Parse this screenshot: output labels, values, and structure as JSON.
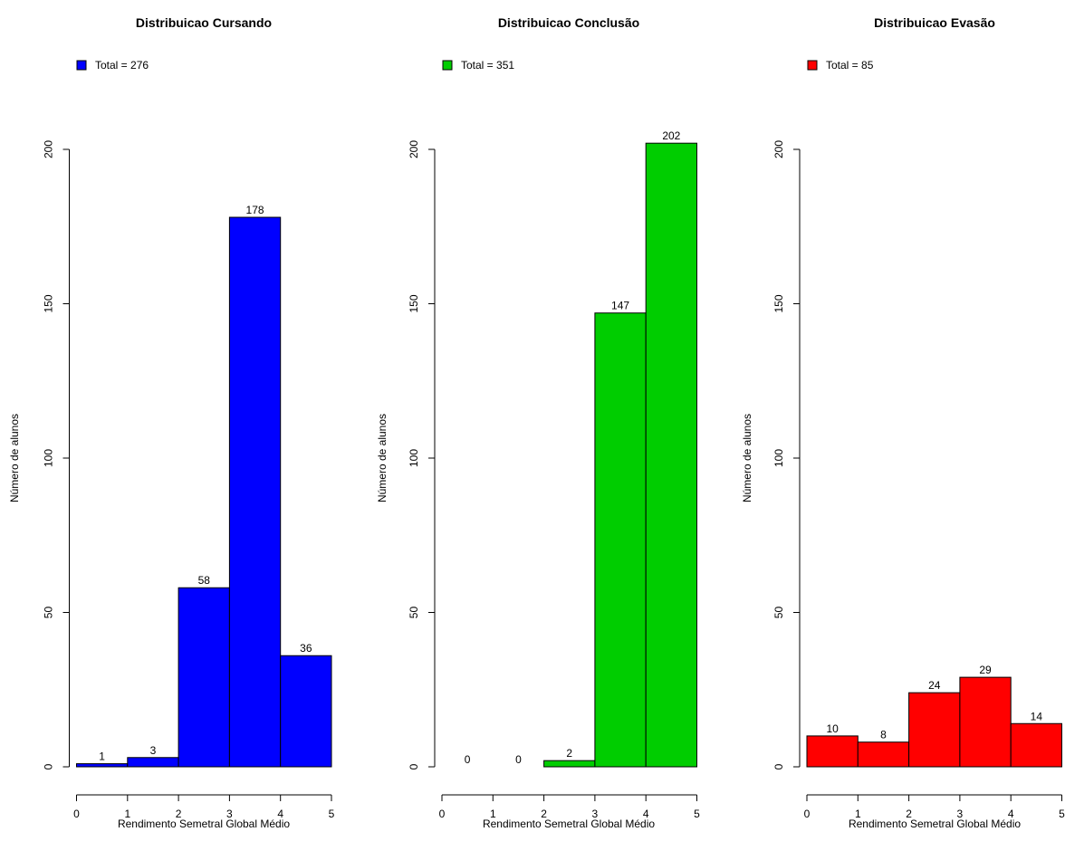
{
  "chart_data": [
    {
      "type": "bar",
      "title": "Distribuicao Cursando",
      "xlabel": "Rendimento Semetral Global Médio",
      "ylabel": "Número de alunos",
      "legend": {
        "label": "Total = 276",
        "position": "top-left"
      },
      "color": "#0000FF",
      "bin_edges": [
        0,
        1,
        2,
        3,
        4,
        5
      ],
      "values": [
        1,
        3,
        58,
        178,
        36
      ],
      "xticks": [
        "0",
        "1",
        "2",
        "3",
        "4",
        "5"
      ],
      "yticks": [
        "0",
        "50",
        "100",
        "150",
        "200"
      ],
      "xlim": [
        0,
        5
      ],
      "ylim": [
        0,
        200
      ],
      "grid": false
    },
    {
      "type": "bar",
      "title": "Distribuicao Conclusão",
      "xlabel": "Rendimento Semetral Global Médio",
      "ylabel": "Número de alunos",
      "legend": {
        "label": "Total = 351",
        "position": "top-left"
      },
      "color": "#00CD00",
      "bin_edges": [
        0,
        1,
        2,
        3,
        4,
        5
      ],
      "values": [
        0,
        0,
        2,
        147,
        202
      ],
      "xticks": [
        "0",
        "1",
        "2",
        "3",
        "4",
        "5"
      ],
      "yticks": [
        "0",
        "50",
        "100",
        "150",
        "200"
      ],
      "xlim": [
        0,
        5
      ],
      "ylim": [
        0,
        200
      ],
      "grid": false
    },
    {
      "type": "bar",
      "title": "Distribuicao Evasão",
      "xlabel": "Rendimento Semetral Global Médio",
      "ylabel": "Número de alunos",
      "legend": {
        "label": "Total = 85",
        "position": "top-left"
      },
      "color": "#FF0000",
      "bin_edges": [
        0,
        1,
        2,
        3,
        4,
        5
      ],
      "values": [
        10,
        8,
        24,
        29,
        14
      ],
      "xticks": [
        "0",
        "1",
        "2",
        "3",
        "4",
        "5"
      ],
      "yticks": [
        "0",
        "50",
        "100",
        "150",
        "200"
      ],
      "xlim": [
        0,
        5
      ],
      "ylim": [
        0,
        200
      ],
      "grid": false
    }
  ]
}
